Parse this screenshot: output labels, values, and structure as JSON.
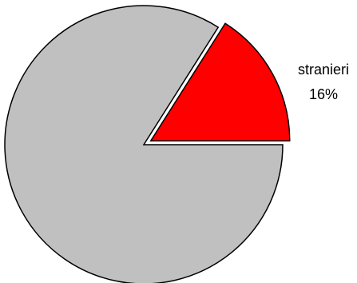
{
  "chart_data": {
    "type": "pie",
    "slices": [
      {
        "name": "",
        "value": 84,
        "percent_label": "",
        "color": "#c0c0c0",
        "exploded": false
      },
      {
        "name": "stranieri",
        "value": 16,
        "percent_label": "16%",
        "color": "#ff0000",
        "exploded": true
      }
    ],
    "start_angle_deg": 0,
    "direction": "clockwise",
    "title": "",
    "legend": "none",
    "border_color": "#000000"
  }
}
